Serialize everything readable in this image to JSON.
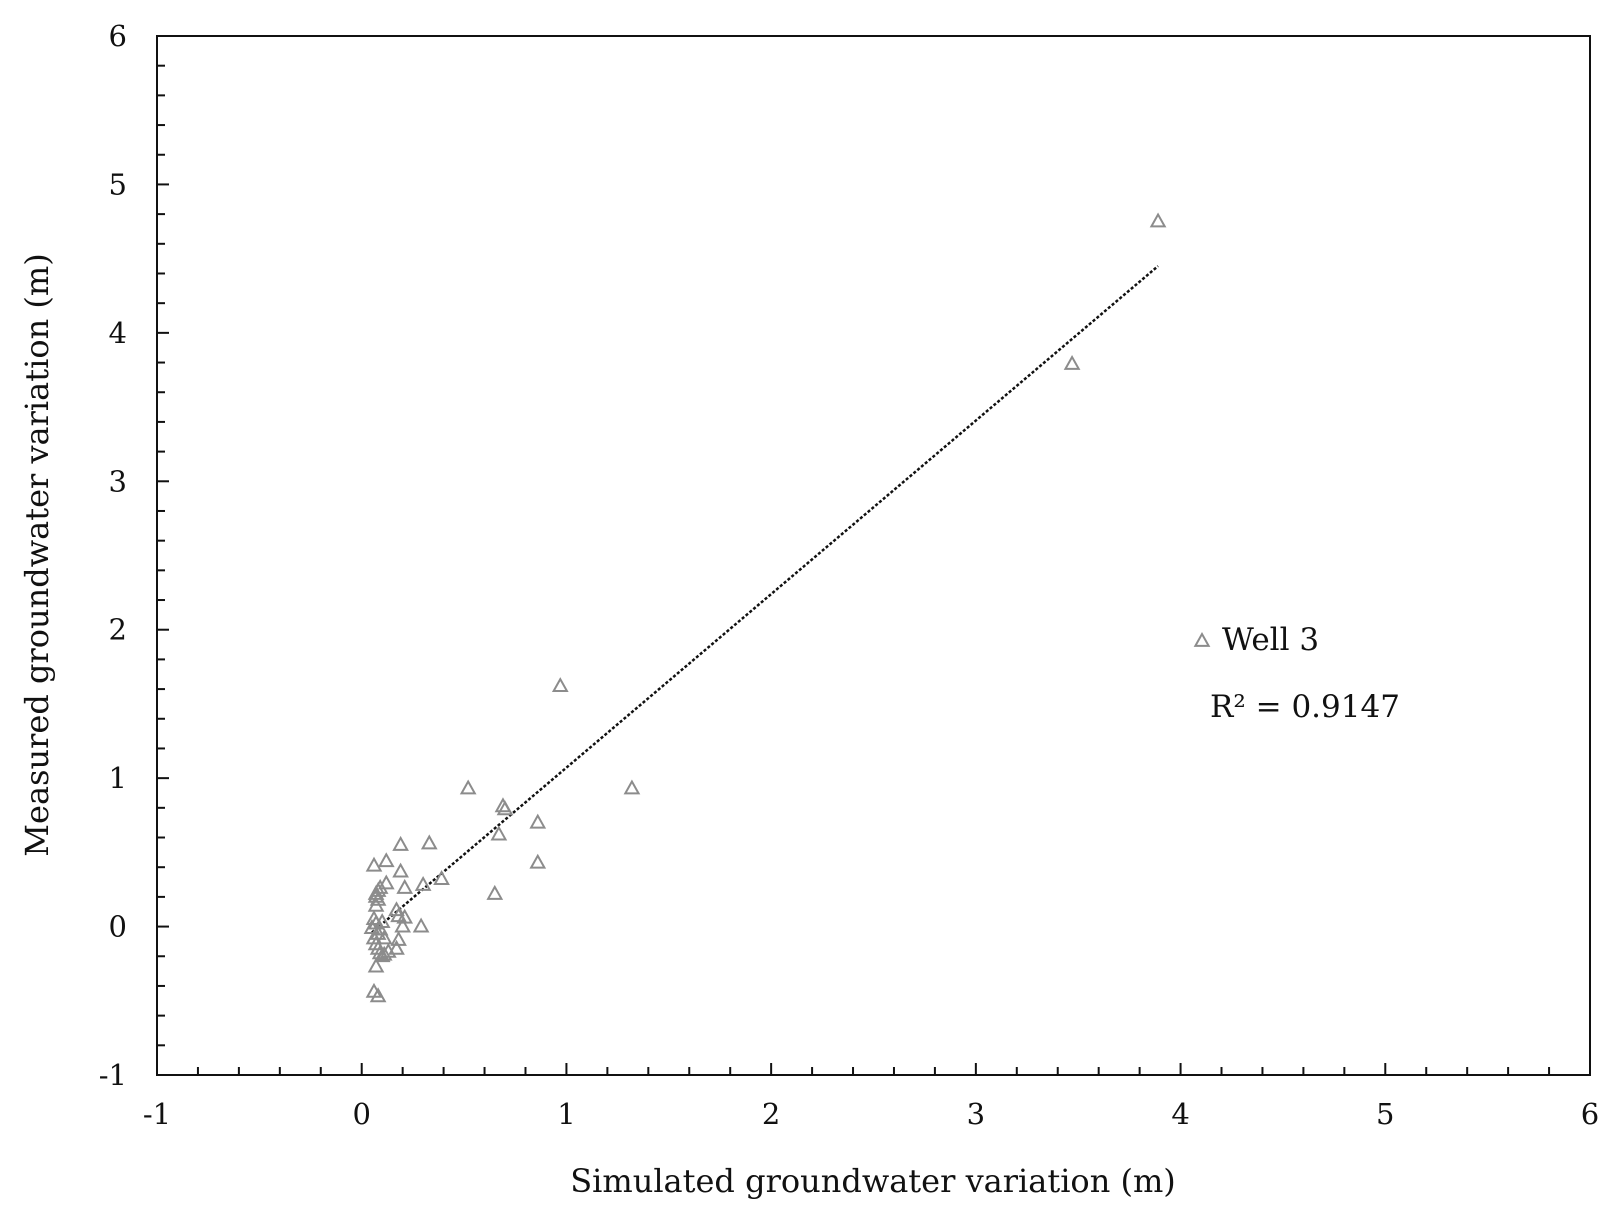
{
  "chart_data": {
    "type": "scatter",
    "xlabel": "Simulated groundwater variation (m)",
    "ylabel": "Measured groundwater variation (m)",
    "xlim": [
      -1,
      6
    ],
    "ylim": [
      -1,
      6
    ],
    "xticks": [
      "-1",
      "0",
      "1",
      "2",
      "3",
      "4",
      "5",
      "6"
    ],
    "yticks": [
      "-1",
      "0",
      "1",
      "2",
      "3",
      "4",
      "5",
      "6"
    ],
    "grid": false,
    "legend_position": "right",
    "marker": "triangle-open",
    "marker_color": "#8c8c8c",
    "series": [
      {
        "name": "Well 3",
        "points": [
          [
            0.06,
            0.41
          ],
          [
            0.07,
            0.22
          ],
          [
            0.08,
            0.24
          ],
          [
            0.07,
            0.2
          ],
          [
            0.09,
            0.26
          ],
          [
            0.07,
            0.14
          ],
          [
            0.08,
            0.18
          ],
          [
            0.06,
            0.05
          ],
          [
            0.07,
            0.02
          ],
          [
            0.05,
            -0.01
          ],
          [
            0.06,
            -0.08
          ],
          [
            0.07,
            -0.12
          ],
          [
            0.08,
            -0.15
          ],
          [
            0.09,
            -0.18
          ],
          [
            0.07,
            -0.27
          ],
          [
            0.1,
            -0.2
          ],
          [
            0.08,
            -0.05
          ],
          [
            0.09,
            -0.02
          ],
          [
            0.1,
            0.03
          ],
          [
            0.11,
            -0.08
          ],
          [
            0.12,
            0.44
          ],
          [
            0.12,
            0.29
          ],
          [
            0.13,
            -0.17
          ],
          [
            0.11,
            -0.19
          ],
          [
            0.06,
            -0.44
          ],
          [
            0.08,
            -0.47
          ],
          [
            0.17,
            0.11
          ],
          [
            0.18,
            0.07
          ],
          [
            0.17,
            -0.15
          ],
          [
            0.18,
            -0.09
          ],
          [
            0.19,
            0.55
          ],
          [
            0.19,
            0.37
          ],
          [
            0.21,
            0.26
          ],
          [
            0.21,
            0.06
          ],
          [
            0.2,
            0.0
          ],
          [
            0.29,
            0.0
          ],
          [
            0.3,
            0.28
          ],
          [
            0.33,
            0.56
          ],
          [
            0.39,
            0.32
          ],
          [
            0.52,
            0.93
          ],
          [
            0.65,
            0.22
          ],
          [
            0.67,
            0.62
          ],
          [
            0.69,
            0.81
          ],
          [
            0.7,
            0.79
          ],
          [
            0.86,
            0.7
          ],
          [
            0.86,
            0.43
          ],
          [
            0.97,
            1.62
          ],
          [
            1.32,
            0.93
          ],
          [
            3.47,
            3.79
          ],
          [
            3.89,
            4.75
          ]
        ]
      }
    ],
    "trendline": {
      "style": "dotted",
      "color": "#111111",
      "x": [
        0.05,
        3.89
      ],
      "y": [
        -0.04,
        4.45
      ]
    },
    "annotation": "R² = 0.9147"
  }
}
